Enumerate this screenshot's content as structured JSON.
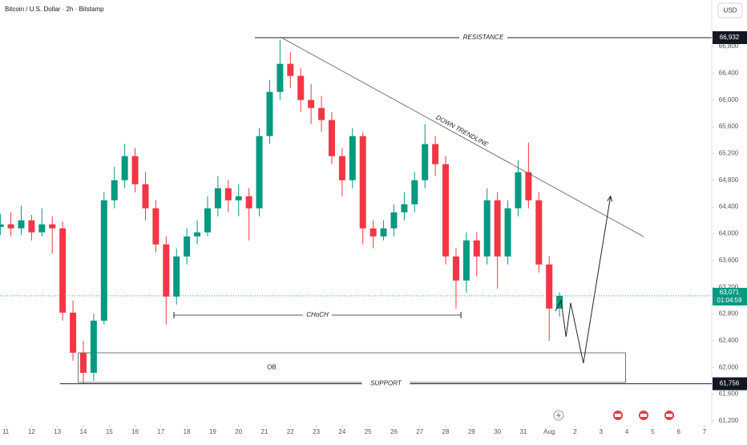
{
  "chart_data": {
    "type": "candlestick",
    "title": "Bitcoin / U.S. Dollar · 2h · Bitstamp",
    "currency": "USD",
    "x": [
      10.8,
      11.2,
      11.6,
      12.0,
      12.4,
      12.8,
      13.2,
      13.6,
      14.0,
      14.4,
      14.8,
      15.2,
      15.6,
      16.0,
      16.4,
      16.8,
      17.2,
      17.6,
      18.0,
      18.4,
      18.8,
      19.2,
      19.6,
      20.0,
      20.4,
      20.8,
      21.2,
      21.6,
      22.0,
      22.4,
      22.8,
      23.2,
      23.6,
      24.0,
      24.4,
      24.8,
      25.2,
      25.6,
      26.0,
      26.4,
      26.8,
      27.2,
      27.6,
      28.0,
      28.4,
      28.8,
      29.2,
      29.6,
      30.0,
      30.4,
      30.8,
      31.2,
      31.6,
      32.0,
      32.4
    ],
    "open": [
      64100,
      64140,
      64080,
      64200,
      64020,
      64140,
      64080,
      62820,
      62220,
      61920,
      62700,
      64500,
      64800,
      65160,
      64740,
      64380,
      63840,
      63060,
      63660,
      63960,
      64020,
      64380,
      64680,
      64500,
      64560,
      64380,
      65460,
      66120,
      66540,
      66360,
      66000,
      65880,
      65700,
      65160,
      64800,
      65460,
      64080,
      63960,
      64080,
      64320,
      64440,
      64800,
      65340,
      65040,
      63660,
      63300,
      63900,
      63660,
      64500,
      63660,
      64380,
      64920,
      64500,
      63540,
      62880
    ],
    "high": [
      64300,
      64320,
      64420,
      64280,
      64380,
      64260,
      64180,
      63000,
      62400,
      62800,
      64620,
      65000,
      65340,
      65280,
      64920,
      64500,
      63960,
      63780,
      64080,
      64200,
      64560,
      64860,
      64800,
      64740,
      64680,
      65580,
      66300,
      66900,
      66720,
      66480,
      66240,
      66060,
      65820,
      65280,
      65580,
      65520,
      64200,
      64200,
      64440,
      64620,
      64920,
      65640,
      65460,
      65160,
      63780,
      64020,
      64020,
      64680,
      64620,
      64500,
      65100,
      65360,
      64620,
      63660,
      63120
    ],
    "low": [
      63980,
      63960,
      63980,
      63900,
      63960,
      63700,
      62700,
      62100,
      61760,
      61800,
      62640,
      64380,
      64680,
      64620,
      64200,
      63720,
      62640,
      62940,
      63540,
      63840,
      63960,
      64260,
      64320,
      64260,
      63900,
      64260,
      65340,
      66000,
      66180,
      65820,
      65640,
      65520,
      65040,
      64560,
      64680,
      63840,
      63780,
      63900,
      63960,
      64200,
      64320,
      64680,
      64860,
      63540,
      62880,
      63120,
      63360,
      63540,
      63180,
      63540,
      64260,
      64380,
      63420,
      62400,
      62760
    ],
    "close": [
      64140,
      64080,
      64200,
      64020,
      64140,
      64080,
      62820,
      62220,
      61920,
      62700,
      64500,
      64800,
      65160,
      64740,
      64380,
      63840,
      63060,
      63660,
      63960,
      64020,
      64380,
      64680,
      64500,
      64560,
      64380,
      65460,
      66120,
      66540,
      66360,
      66000,
      65880,
      65700,
      65160,
      64800,
      65460,
      64080,
      63960,
      64080,
      64320,
      64440,
      64800,
      65340,
      65040,
      63660,
      63300,
      63900,
      63660,
      64500,
      63660,
      64380,
      64920,
      64500,
      63540,
      62880,
      63071
    ],
    "up_color": "#089981",
    "down_color": "#f23645",
    "xlim": [
      10.78,
      38.28
    ],
    "xticks": [
      11,
      12,
      13,
      14,
      15,
      16,
      17,
      18,
      19,
      20,
      21,
      22,
      23,
      24,
      25,
      26,
      27,
      28,
      29,
      30,
      31,
      {
        "value": 32,
        "label": "Aug"
      },
      {
        "value": 33,
        "label": "2"
      },
      {
        "value": 34,
        "label": "3"
      },
      {
        "value": 35,
        "label": "4"
      },
      {
        "value": 36,
        "label": "5"
      },
      {
        "value": 37,
        "label": "6"
      },
      {
        "value": 38,
        "label": "7"
      }
    ],
    "ylim": [
      61140,
      67495
    ],
    "yticks": [
      {
        "value": 61200,
        "label": "61,200"
      },
      {
        "value": 61600,
        "label": "61,600"
      },
      {
        "value": 62000,
        "label": "62,000"
      },
      {
        "value": 62400,
        "label": "62,400"
      },
      {
        "value": 62800,
        "label": "62,800"
      },
      {
        "value": 63200,
        "label": "63,200"
      },
      {
        "value": 63600,
        "label": "63,600"
      },
      {
        "value": 64000,
        "label": "64,000"
      },
      {
        "value": 64400,
        "label": "64,400"
      },
      {
        "value": 64800,
        "label": "64,800"
      },
      {
        "value": 65200,
        "label": "65,200"
      },
      {
        "value": 65600,
        "label": "65,600"
      },
      {
        "value": 66000,
        "label": "66,000"
      },
      {
        "value": 66400,
        "label": "66,400"
      },
      {
        "value": 66800,
        "label": "66,800"
      }
    ],
    "levels": [
      {
        "name": "RESISTANCE",
        "value": 66932,
        "label": "66,932",
        "from": 20.63
      },
      {
        "name": "SUPPORT",
        "value": 61756,
        "label": "61,756",
        "from": 13.1
      }
    ],
    "choch": {
      "name": "CHoCH",
      "value": 62783,
      "x": [
        17.5,
        28.59
      ]
    },
    "order_block": {
      "name": "OB",
      "ylim": [
        61776,
        62219
      ],
      "x": [
        13.8,
        34.95
      ]
    },
    "trendline": {
      "name": "DOWN TRENDLINE",
      "x": [
        21.62,
        35.64
      ],
      "y": [
        66940,
        63958
      ]
    },
    "projection": {
      "x": [
        32.24,
        32.46,
        32.65,
        32.83,
        33.32,
        34.37
      ],
      "y": [
        62844,
        63000,
        62460,
        62964,
        62064,
        64560
      ]
    },
    "current_price": {
      "value": 63071,
      "label": "63,071",
      "countdown": "01:04:59"
    }
  }
}
